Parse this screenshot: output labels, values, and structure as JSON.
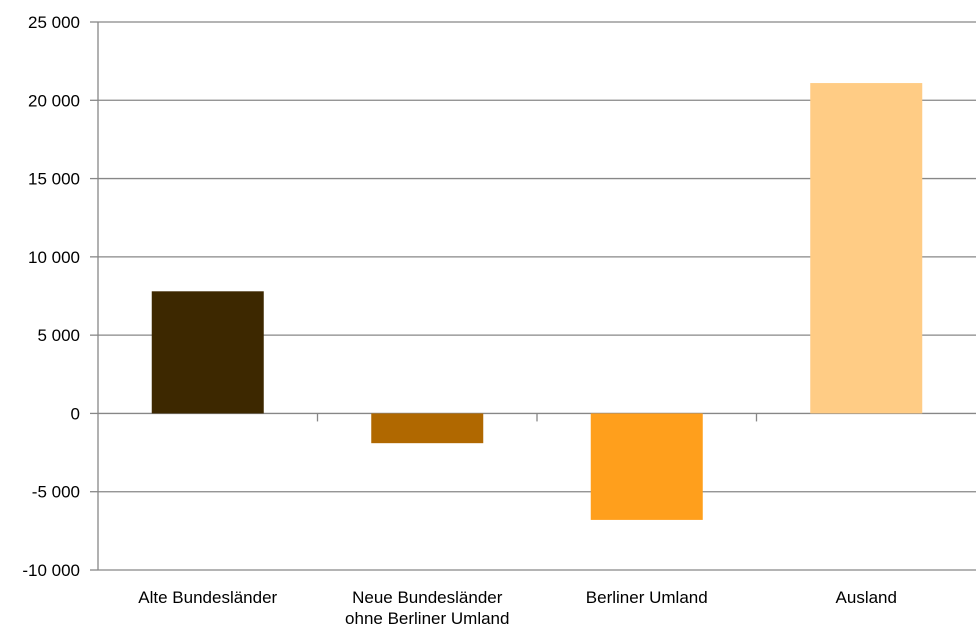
{
  "chart_data": {
    "type": "bar",
    "categories": [
      "Alte Bundesländer",
      "Neue Bundesländer\nohne Berliner Umland",
      "Berliner Umland",
      "Ausland"
    ],
    "values": [
      7800,
      -1900,
      -6800,
      21100
    ],
    "colors": [
      "#3d2800",
      "#b06800",
      "#ff9f1c",
      "#ffcc85"
    ],
    "ylim": [
      -10000,
      25000
    ],
    "yticks": [
      -10000,
      -5000,
      0,
      5000,
      10000,
      15000,
      20000,
      25000
    ],
    "ytick_labels": [
      "-10 000",
      "-5 000",
      "0",
      "5 000",
      "10 000",
      "15 000",
      "20 000",
      "25 000"
    ],
    "grid": true,
    "gridline_color": "#878787"
  }
}
